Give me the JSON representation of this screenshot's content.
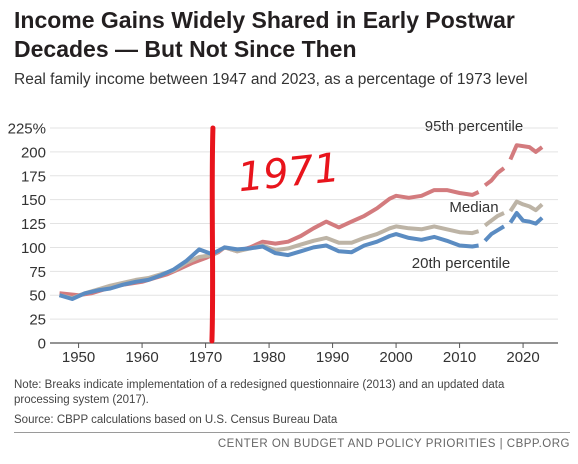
{
  "title": "Income Gains Widely Shared in Early Postwar Decades — But Not Since Then",
  "subtitle": "Real family income between 1947 and 2023, as a percentage of 1973 level",
  "note": "Note: Breaks indicate implementation of a redesigned questionnaire (2013) and an updated data processing system (2017).",
  "source": "Source: CBPP calculations based on U.S. Census Bureau Data",
  "footer": "CENTER ON BUDGET AND POLICY PRIORITIES | CBPP.ORG",
  "annotation": {
    "text": "1971",
    "x": 1971,
    "color": "#e8141c"
  },
  "chart_data": {
    "type": "line",
    "title": "Income Gains Widely Shared in Early Postwar Decades — But Not Since Then",
    "xlabel": "",
    "ylabel": "",
    "xlim": [
      1947,
      2023
    ],
    "ylim": [
      0,
      225
    ],
    "x_ticks": [
      1950,
      1960,
      1970,
      1980,
      1990,
      2000,
      2010,
      2020
    ],
    "y_ticks": [
      0,
      25,
      50,
      75,
      100,
      125,
      150,
      175,
      200,
      225
    ],
    "y_tick_labels": [
      "0",
      "25",
      "50",
      "75",
      "100",
      "125",
      "150",
      "175",
      "200",
      "225%"
    ],
    "grid": "horizontal",
    "series": [
      {
        "name": "95th percentile",
        "color": "#d37b7e",
        "breaks_after": [
          2013,
          2017
        ],
        "points": [
          [
            1947,
            52
          ],
          [
            1950,
            50
          ],
          [
            1952,
            52
          ],
          [
            1954,
            56
          ],
          [
            1956,
            60
          ],
          [
            1958,
            62
          ],
          [
            1960,
            64
          ],
          [
            1962,
            68
          ],
          [
            1964,
            72
          ],
          [
            1966,
            78
          ],
          [
            1968,
            84
          ],
          [
            1970,
            89
          ],
          [
            1972,
            95
          ],
          [
            1973,
            100
          ],
          [
            1975,
            96
          ],
          [
            1977,
            100
          ],
          [
            1979,
            106
          ],
          [
            1981,
            104
          ],
          [
            1983,
            106
          ],
          [
            1985,
            112
          ],
          [
            1987,
            120
          ],
          [
            1989,
            127
          ],
          [
            1991,
            121
          ],
          [
            1993,
            127
          ],
          [
            1995,
            133
          ],
          [
            1997,
            141
          ],
          [
            1999,
            151
          ],
          [
            2000,
            154
          ],
          [
            2002,
            152
          ],
          [
            2004,
            154
          ],
          [
            2006,
            160
          ],
          [
            2008,
            160
          ],
          [
            2010,
            157
          ],
          [
            2012,
            155
          ],
          [
            2013,
            158
          ],
          [
            2014,
            165
          ],
          [
            2015,
            170
          ],
          [
            2016,
            178
          ],
          [
            2017,
            183
          ],
          [
            2018,
            192
          ],
          [
            2019,
            207
          ],
          [
            2021,
            205
          ],
          [
            2022,
            200
          ],
          [
            2023,
            205
          ]
        ]
      },
      {
        "name": "Median",
        "color": "#bdb4a6",
        "breaks_after": [
          2013,
          2017
        ],
        "points": [
          [
            1947,
            50
          ],
          [
            1949,
            47
          ],
          [
            1951,
            52
          ],
          [
            1953,
            56
          ],
          [
            1955,
            60
          ],
          [
            1957,
            63
          ],
          [
            1959,
            66
          ],
          [
            1961,
            68
          ],
          [
            1963,
            72
          ],
          [
            1965,
            76
          ],
          [
            1967,
            84
          ],
          [
            1969,
            90
          ],
          [
            1971,
            92
          ],
          [
            1973,
            100
          ],
          [
            1975,
            96
          ],
          [
            1977,
            99
          ],
          [
            1979,
            102
          ],
          [
            1981,
            97
          ],
          [
            1983,
            99
          ],
          [
            1985,
            103
          ],
          [
            1987,
            107
          ],
          [
            1989,
            110
          ],
          [
            1991,
            105
          ],
          [
            1993,
            105
          ],
          [
            1995,
            110
          ],
          [
            1997,
            114
          ],
          [
            1999,
            120
          ],
          [
            2000,
            122
          ],
          [
            2002,
            120
          ],
          [
            2004,
            119
          ],
          [
            2006,
            122
          ],
          [
            2008,
            119
          ],
          [
            2010,
            116
          ],
          [
            2012,
            115
          ],
          [
            2013,
            117
          ],
          [
            2014,
            123
          ],
          [
            2015,
            128
          ],
          [
            2016,
            133
          ],
          [
            2017,
            136
          ],
          [
            2018,
            138
          ],
          [
            2019,
            148
          ],
          [
            2020,
            145
          ],
          [
            2021,
            143
          ],
          [
            2022,
            139
          ],
          [
            2023,
            145
          ]
        ]
      },
      {
        "name": "20th percentile",
        "color": "#5b8cc2",
        "breaks_after": [
          2013,
          2017
        ],
        "points": [
          [
            1947,
            50
          ],
          [
            1949,
            46
          ],
          [
            1951,
            52
          ],
          [
            1953,
            55
          ],
          [
            1955,
            57
          ],
          [
            1957,
            61
          ],
          [
            1959,
            64
          ],
          [
            1961,
            66
          ],
          [
            1963,
            71
          ],
          [
            1965,
            77
          ],
          [
            1967,
            86
          ],
          [
            1969,
            98
          ],
          [
            1971,
            93
          ],
          [
            1973,
            100
          ],
          [
            1975,
            98
          ],
          [
            1977,
            99
          ],
          [
            1979,
            101
          ],
          [
            1981,
            94
          ],
          [
            1983,
            92
          ],
          [
            1985,
            96
          ],
          [
            1987,
            100
          ],
          [
            1989,
            102
          ],
          [
            1991,
            96
          ],
          [
            1993,
            95
          ],
          [
            1995,
            102
          ],
          [
            1997,
            106
          ],
          [
            1999,
            112
          ],
          [
            2000,
            114
          ],
          [
            2002,
            110
          ],
          [
            2004,
            108
          ],
          [
            2006,
            111
          ],
          [
            2008,
            107
          ],
          [
            2010,
            102
          ],
          [
            2012,
            101
          ],
          [
            2013,
            102
          ],
          [
            2014,
            107
          ],
          [
            2015,
            114
          ],
          [
            2016,
            118
          ],
          [
            2017,
            122
          ],
          [
            2018,
            126
          ],
          [
            2019,
            136
          ],
          [
            2020,
            128
          ],
          [
            2021,
            127
          ],
          [
            2022,
            125
          ],
          [
            2023,
            131
          ]
        ]
      }
    ]
  }
}
